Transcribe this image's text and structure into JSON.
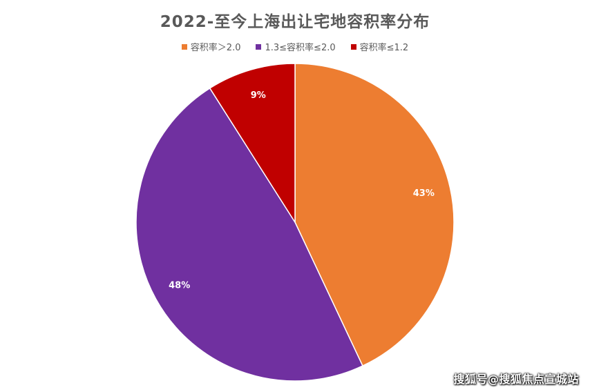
{
  "chart_data": {
    "type": "pie",
    "title": "2022-至今上海出让宅地容积率分布",
    "legend_placement": "top",
    "categories": [
      "容积率＞2.0",
      "1.3≤容积率≤2.0",
      "容积率≤1.2"
    ],
    "values": [
      43,
      48,
      9
    ],
    "data_labels": [
      "43%",
      "48%",
      "9%"
    ],
    "colors": [
      "#ED7D31",
      "#7030A0",
      "#C00000"
    ]
  },
  "watermark": "搜狐号@搜狐焦点宣城站"
}
